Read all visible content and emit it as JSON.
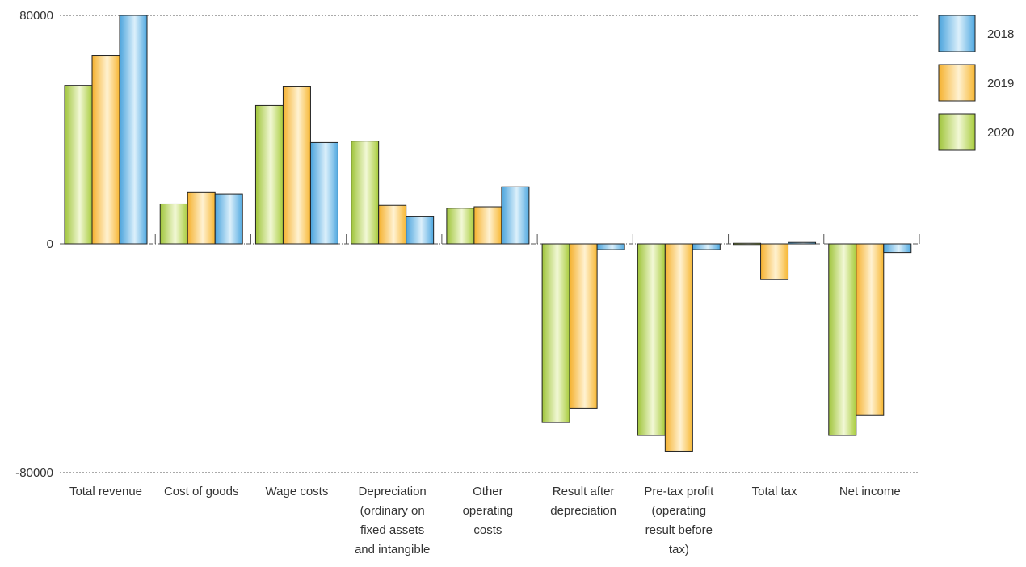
{
  "chart_data": {
    "type": "bar",
    "categories": [
      [
        "Total revenue"
      ],
      [
        "Cost of goods"
      ],
      [
        "Wage costs"
      ],
      [
        "Depreciation",
        "(ordinary on",
        "fixed assets",
        "and intangible"
      ],
      [
        "Other",
        "operating",
        "costs"
      ],
      [
        "Result after",
        "depreciation"
      ],
      [
        "Pre-tax profit",
        "(operating",
        "result before",
        "tax)"
      ],
      [
        "Total tax"
      ],
      [
        "Net income"
      ]
    ],
    "series": [
      {
        "name": "2020",
        "color": "#a8cc3c",
        "values": [
          55500,
          14000,
          48500,
          36000,
          12500,
          -62500,
          -67000,
          0,
          -67000
        ]
      },
      {
        "name": "2019",
        "color": "#f7b733",
        "values": [
          66000,
          18000,
          55000,
          13500,
          13000,
          -57500,
          -72500,
          -12500,
          -60000
        ]
      },
      {
        "name": "2018",
        "color": "#4fa8e0",
        "values": [
          80000,
          17500,
          35500,
          9500,
          20000,
          -2000,
          -2000,
          500,
          -3000
        ]
      }
    ],
    "legend_order": [
      "2018",
      "2019",
      "2020"
    ],
    "legend_position": "top-right",
    "ylim": [
      -80000,
      80000
    ],
    "yticks": [
      "80000",
      "0",
      "-80000"
    ]
  }
}
